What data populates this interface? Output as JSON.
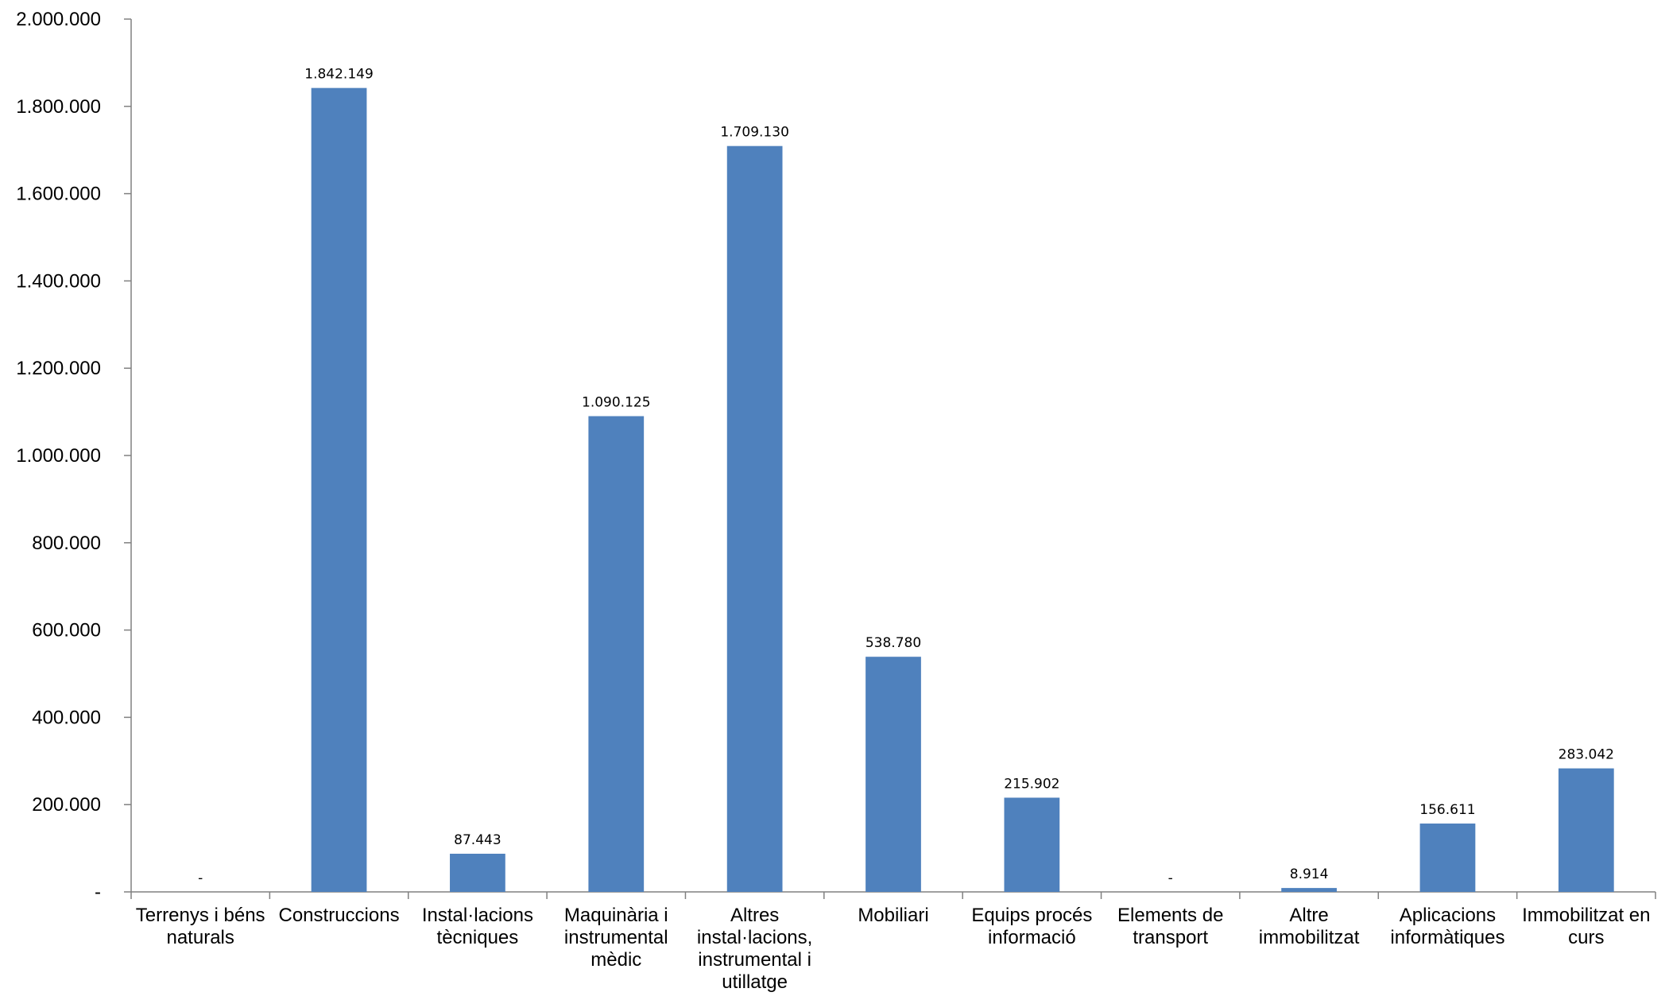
{
  "chart_data": {
    "type": "bar",
    "title": "",
    "xlabel": "",
    "ylabel": "",
    "ylim": [
      0,
      2000000
    ],
    "yticks": [
      {
        "value": 0,
        "label": "-"
      },
      {
        "value": 200000,
        "label": "200.000"
      },
      {
        "value": 400000,
        "label": "400.000"
      },
      {
        "value": 600000,
        "label": "600.000"
      },
      {
        "value": 800000,
        "label": "800.000"
      },
      {
        "value": 1000000,
        "label": "1.000.000"
      },
      {
        "value": 1200000,
        "label": "1.200.000"
      },
      {
        "value": 1400000,
        "label": "1.400.000"
      },
      {
        "value": 1600000,
        "label": "1.600.000"
      },
      {
        "value": 1800000,
        "label": "1.800.000"
      },
      {
        "value": 2000000,
        "label": "2.000.000"
      }
    ],
    "categories": [
      [
        "Terrenys i béns",
        "naturals"
      ],
      [
        "Construccions"
      ],
      [
        "Instal·lacions",
        "tècniques"
      ],
      [
        "Maquinària i",
        "instrumental",
        "mèdic"
      ],
      [
        "Altres",
        "instal·lacions,",
        "instrumental i",
        "utillatge"
      ],
      [
        "Mobiliari"
      ],
      [
        "Equips procés",
        "informació"
      ],
      [
        "Elements de",
        "transport"
      ],
      [
        "Altre",
        "immobilitzat"
      ],
      [
        "Aplicacions",
        "informàtiques"
      ],
      [
        "Immobilitzat en",
        "curs"
      ]
    ],
    "values": [
      0,
      1842149,
      87443,
      1090125,
      1709130,
      538780,
      215902,
      0,
      8914,
      156611,
      283042
    ],
    "data_labels": [
      "-",
      "1.842.149",
      "87.443",
      "1.090.125",
      "1.709.130",
      "538.780",
      "215.902",
      "-",
      "8.914",
      "156.611",
      "283.042"
    ],
    "bar_color": "#4F81BD",
    "grid": false,
    "legend": "none"
  }
}
